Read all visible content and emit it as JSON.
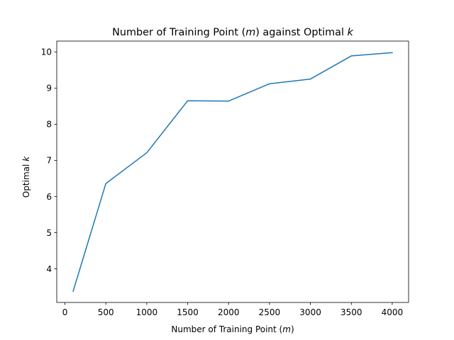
{
  "chart_data": {
    "type": "line",
    "title": {
      "before": "Number of Training Point (",
      "italic": "m",
      "mid": ") against Optimal ",
      "italic2": "k"
    },
    "xlabel": {
      "before": "Number of Training Point (",
      "italic": "m",
      "after": ")"
    },
    "ylabel": {
      "before": "Optimal ",
      "italic": "k"
    },
    "xlim": [
      -100,
      4200
    ],
    "ylim": [
      3.07,
      10.3
    ],
    "xticks": [
      0,
      500,
      1000,
      1500,
      2000,
      2500,
      3000,
      3500,
      4000
    ],
    "yticks": [
      4,
      5,
      6,
      7,
      8,
      9,
      10
    ],
    "grid": false,
    "series": [
      {
        "color": "#1f77b4",
        "x": [
          100,
          500,
          1000,
          1500,
          2000,
          2500,
          3000,
          3500,
          4000
        ],
        "y": [
          3.38,
          6.36,
          7.21,
          8.65,
          8.64,
          9.12,
          9.25,
          9.89,
          9.98
        ]
      }
    ]
  }
}
